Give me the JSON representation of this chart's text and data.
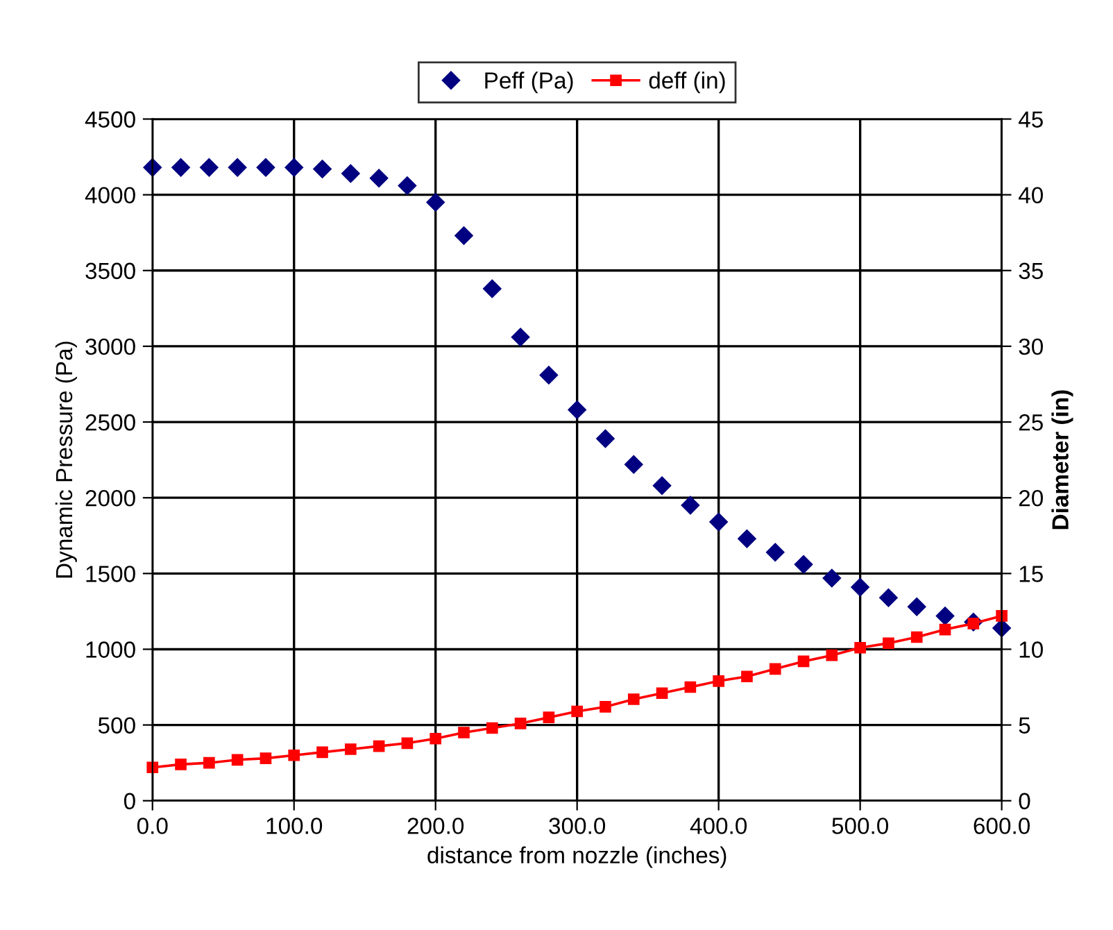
{
  "chart_data": {
    "type": "scatter",
    "xlabel": "distance from nozzle (inches)",
    "ylabel": "Dynamic Pressure (Pa)",
    "y2label": "Diameter (in)",
    "x": [
      0,
      20,
      40,
      60,
      80,
      100,
      120,
      140,
      160,
      180,
      200,
      220,
      240,
      260,
      280,
      300,
      320,
      340,
      360,
      380,
      400,
      420,
      440,
      460,
      480,
      500,
      520,
      540,
      560,
      580,
      600
    ],
    "series": [
      {
        "name": "Peff (Pa)",
        "color": "#000080",
        "marker": "diamond",
        "values": [
          4180,
          4180,
          4180,
          4180,
          4180,
          4180,
          4170,
          4140,
          4110,
          4060,
          3950,
          3730,
          3380,
          3060,
          2810,
          2580,
          2390,
          2220,
          2080,
          1950,
          1840,
          1730,
          1640,
          1560,
          1470,
          1410,
          1340,
          1280,
          1220,
          1180,
          1140
        ]
      },
      {
        "name": "deff (in)",
        "color": "#ff0000",
        "type": "line",
        "marker": "square",
        "line_style": "solid",
        "axis": "y2",
        "values": [
          2.2,
          2.4,
          2.5,
          2.7,
          2.8,
          3.0,
          3.2,
          3.4,
          3.6,
          3.8,
          4.1,
          4.5,
          4.8,
          5.1,
          5.5,
          5.9,
          6.2,
          6.7,
          7.1,
          7.5,
          7.9,
          8.2,
          8.7,
          9.2,
          9.6,
          10.1,
          10.4,
          10.8,
          11.3,
          11.7,
          12.2
        ]
      }
    ],
    "xlim": [
      0,
      600
    ],
    "xticks": [
      {
        "value": 0,
        "label": "0.0"
      },
      {
        "value": 100,
        "label": "100.0"
      },
      {
        "value": 200,
        "label": "200.0"
      },
      {
        "value": 300,
        "label": "300.0"
      },
      {
        "value": 400,
        "label": "400.0"
      },
      {
        "value": 500,
        "label": "500.0"
      },
      {
        "value": 600,
        "label": "600.0"
      }
    ],
    "ylim": [
      0,
      4500
    ],
    "yticks": [
      0,
      500,
      1000,
      1500,
      2000,
      2500,
      3000,
      3500,
      4000,
      4500
    ],
    "y2lim": [
      0,
      45
    ],
    "y2ticks": [
      0,
      5,
      10,
      15,
      20,
      25,
      30,
      35,
      40,
      45
    ],
    "grid": true,
    "legend": "top"
  }
}
